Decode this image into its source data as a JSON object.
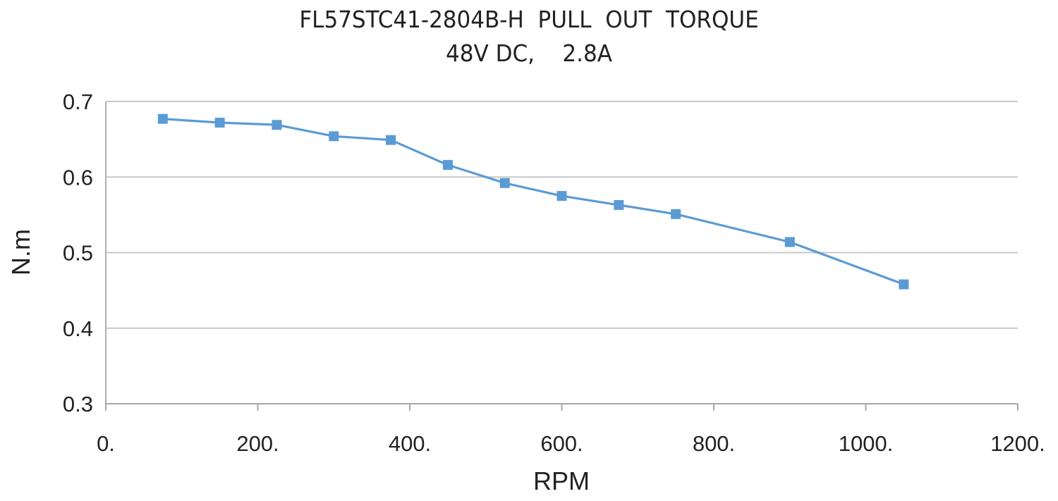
{
  "chart_data": {
    "type": "line",
    "title": "FL57STC41-2804B-H  PULL  OUT  TORQUE",
    "subtitle": "48V DC,    2.8A",
    "xlabel": "RPM",
    "ylabel": "N.m",
    "xlim": [
      0,
      1200
    ],
    "ylim": [
      0.3,
      0.7
    ],
    "x_ticks": [
      0,
      200,
      400,
      600,
      800,
      1000,
      1200
    ],
    "x_tick_labels": [
      "0.",
      "200.",
      "400.",
      "600.",
      "800.",
      "1000.",
      "1200."
    ],
    "y_ticks": [
      0.3,
      0.4,
      0.5,
      0.6,
      0.7
    ],
    "y_tick_labels": [
      "0.3",
      "0.4",
      "0.5",
      "0.6",
      "0.7"
    ],
    "grid": "horizontal",
    "legend": "none",
    "series": [
      {
        "color": "#5b9bd5",
        "marker": "square",
        "x": [
          75,
          150,
          225,
          300,
          375,
          450,
          525,
          600,
          675,
          750,
          900,
          1050
        ],
        "y": [
          0.677,
          0.672,
          0.669,
          0.654,
          0.649,
          0.616,
          0.592,
          0.575,
          0.563,
          0.551,
          0.514,
          0.458
        ]
      }
    ]
  }
}
